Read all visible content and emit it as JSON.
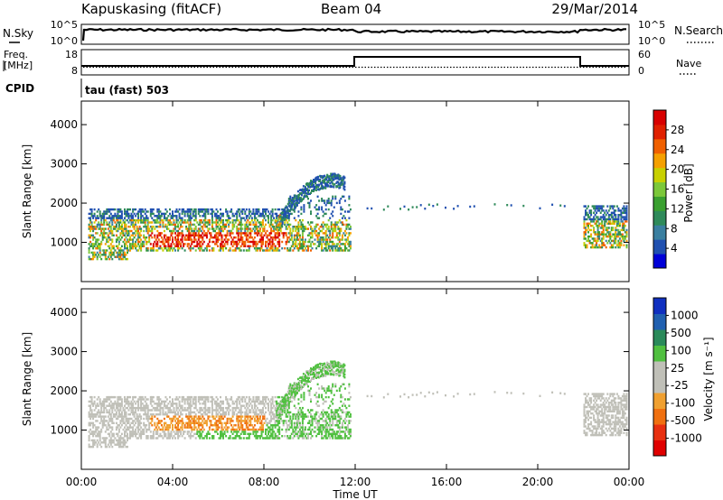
{
  "header": {
    "station": "Kapuskasing (fitACF)",
    "beam": "Beam 04",
    "date": "29/Mar/2014"
  },
  "noise_panel": {
    "left_label": "N.Sky",
    "left_ticks": [
      "10^5",
      "10^0"
    ],
    "right_label": "N.Search",
    "right_ticks": [
      "10^5",
      "10^0"
    ]
  },
  "freq_panel": {
    "left_label_1": "Freq.",
    "left_label_2": "[MHz]",
    "left_ticks": [
      "18",
      "8"
    ],
    "right_label": "Nave",
    "right_ticks": [
      "60",
      "0"
    ],
    "cpid_label": "CPID",
    "cpid_text": "tau (fast) 503"
  },
  "chart_data": [
    {
      "type": "heatmap",
      "name": "power",
      "ylabel": "Slant Range [km]",
      "y_ticks": [
        "1000",
        "2000",
        "3000",
        "4000"
      ],
      "ylim": [
        0,
        4600
      ],
      "xlim": [
        0,
        24
      ],
      "colorbar": {
        "label": "Power [dB]",
        "ticks": [
          "4",
          "8",
          "12",
          "16",
          "20",
          "24",
          "28"
        ],
        "colors": [
          "#0000d8",
          "#2050b0",
          "#3a7fa0",
          "#2f8a5a",
          "#3aa030",
          "#7cc83a",
          "#c8d000",
          "#f5a000",
          "#f06000",
          "#e02000",
          "#d80000"
        ]
      }
    },
    {
      "type": "heatmap",
      "name": "velocity",
      "ylabel": "Slant Range [km]",
      "y_ticks": [
        "1000",
        "2000",
        "3000",
        "4000"
      ],
      "ylim": [
        0,
        4600
      ],
      "xlim": [
        0,
        24
      ],
      "colorbar": {
        "label": "Velocity [m s⁻¹]",
        "ticks": [
          "1000",
          "500",
          "100",
          "25",
          "-25",
          "-100",
          "-500",
          "-1000"
        ],
        "colors": [
          "#1030c0",
          "#2060b0",
          "#2a8a5a",
          "#50c040",
          "#c0c0b8",
          "#c0c0b8",
          "#f0a030",
          "#f07010",
          "#e83010",
          "#e00000"
        ]
      }
    }
  ],
  "x_axis": {
    "ticks": [
      "00:00",
      "04:00",
      "08:00",
      "12:00",
      "16:00",
      "20:00",
      "00:00"
    ],
    "label": "Time UT"
  }
}
